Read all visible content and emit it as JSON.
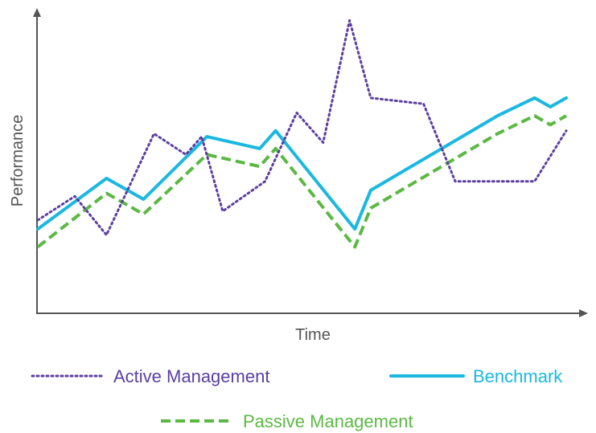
{
  "chart_data": {
    "type": "line",
    "title": "",
    "xlabel": "Time",
    "ylabel": "Performance",
    "grid": false,
    "legend_placement": "bottom",
    "ylim": [
      0,
      100
    ],
    "series": [
      {
        "name": "Active Management",
        "color": "#5b3fa0",
        "style": "dotted",
        "x": [
          0,
          0.07,
          0.13,
          0.22,
          0.28,
          0.31,
          0.35,
          0.43,
          0.49,
          0.54,
          0.59,
          0.63,
          0.73,
          0.79,
          0.86,
          0.94,
          1.0
        ],
        "y": [
          31,
          39,
          26,
          60,
          53,
          59,
          34,
          44,
          67,
          57,
          98,
          72,
          70,
          44,
          44,
          44,
          61
        ]
      },
      {
        "name": "Benchmark",
        "color": "#1ab8e0",
        "style": "solid",
        "x": [
          0,
          0.13,
          0.2,
          0.32,
          0.42,
          0.45,
          0.6,
          0.63,
          0.87,
          0.94,
          0.97,
          1.0
        ],
        "y": [
          28,
          45,
          38,
          59,
          55,
          61,
          28,
          41,
          66,
          72,
          69,
          72
        ]
      },
      {
        "name": "Passive Management",
        "color": "#5cb844",
        "style": "dashed",
        "x": [
          0,
          0.13,
          0.2,
          0.32,
          0.42,
          0.45,
          0.6,
          0.63,
          0.87,
          0.94,
          0.97,
          1.0
        ],
        "y": [
          22,
          40,
          33,
          53,
          49,
          55,
          22,
          35,
          60,
          66,
          63,
          66
        ]
      }
    ]
  }
}
